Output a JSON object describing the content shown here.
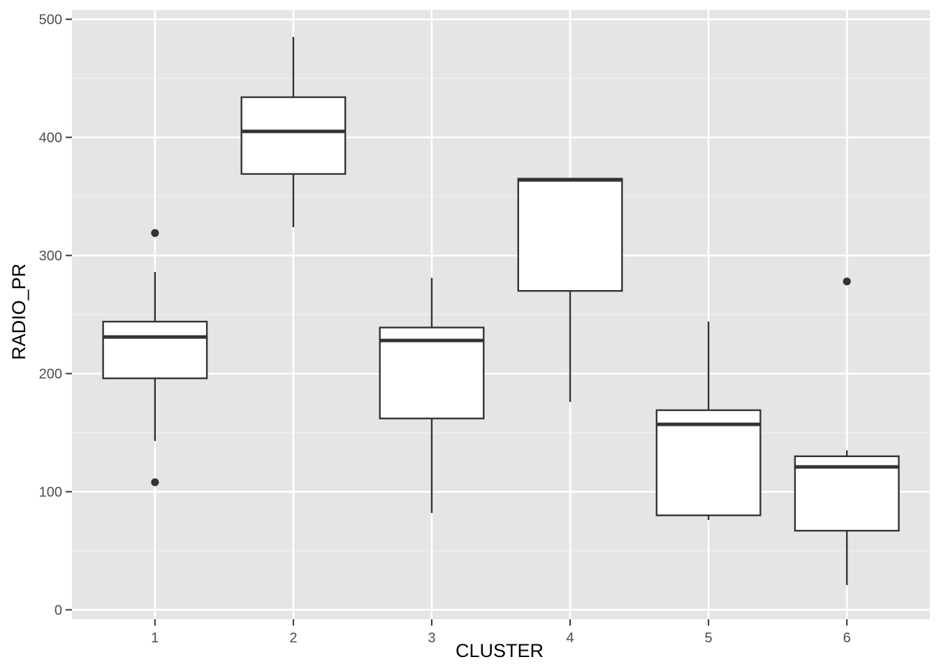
{
  "chart_data": {
    "type": "boxplot",
    "title": "",
    "xlabel": "CLUSTER",
    "ylabel": "RADIO_PR",
    "ylim": [
      -8,
      508
    ],
    "yticks": [
      0,
      100,
      200,
      300,
      400,
      500
    ],
    "grid": true,
    "background": "#e5e5e5",
    "categories": [
      "1",
      "2",
      "3",
      "4",
      "5",
      "6"
    ],
    "boxes": [
      {
        "category": "1",
        "whisker_low": 143,
        "q1": 196,
        "median": 231,
        "q3": 244,
        "whisker_high": 286,
        "outliers": [
          108,
          319
        ]
      },
      {
        "category": "2",
        "whisker_low": 324,
        "q1": 369,
        "median": 405,
        "q3": 434,
        "whisker_high": 485,
        "outliers": []
      },
      {
        "category": "3",
        "whisker_low": 82,
        "q1": 162,
        "median": 228,
        "q3": 239,
        "whisker_high": 281,
        "outliers": []
      },
      {
        "category": "4",
        "whisker_low": 176,
        "q1": 270,
        "median": 364,
        "q3": 365,
        "whisker_high": 365,
        "outliers": []
      },
      {
        "category": "5",
        "whisker_low": 76,
        "q1": 80,
        "median": 157,
        "q3": 169,
        "whisker_high": 244,
        "outliers": []
      },
      {
        "category": "6",
        "whisker_low": 21,
        "q1": 67,
        "median": 121,
        "q3": 130,
        "whisker_high": 135,
        "outliers": [
          278
        ]
      }
    ]
  }
}
